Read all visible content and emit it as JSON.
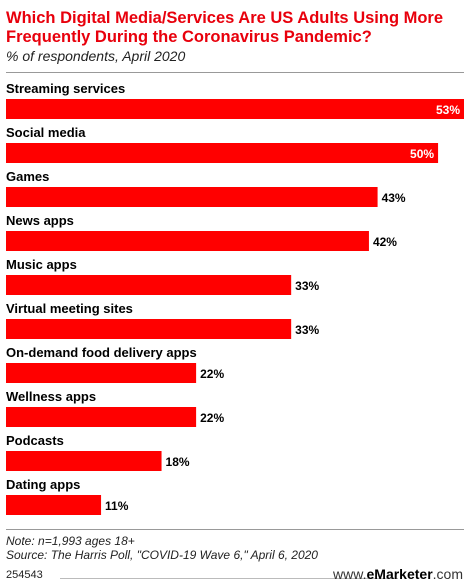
{
  "header": {
    "title": "Which Digital Media/Services Are US Adults Using More Frequently During the Coronavirus Pandemic?",
    "subtitle": "% of respondents, April 2020"
  },
  "footer": {
    "note": "Note: n=1,993 ages 18+",
    "source": "Source: The Harris Poll, \"COVID-19 Wave 6,\" April 6, 2020",
    "chart_id": "254543",
    "brand_prefix": "www.",
    "brand_name": "eMarketer",
    "brand_suffix": ".com"
  },
  "chart_data": {
    "type": "bar",
    "orientation": "horizontal",
    "categories": [
      "Streaming services",
      "Social media",
      "Games",
      "News apps",
      "Music apps",
      "Virtual meeting sites",
      "On-demand food delivery apps",
      "Wellness apps",
      "Podcasts",
      "Dating apps"
    ],
    "values": [
      53,
      50,
      43,
      42,
      33,
      33,
      22,
      22,
      18,
      11
    ],
    "value_labels": [
      "53%",
      "50%",
      "43%",
      "42%",
      "33%",
      "33%",
      "22%",
      "22%",
      "18%",
      "11%"
    ],
    "unit": "%",
    "xlim": [
      0,
      53
    ],
    "bar_color": "#ff0000",
    "grid": false,
    "legend": "none"
  }
}
